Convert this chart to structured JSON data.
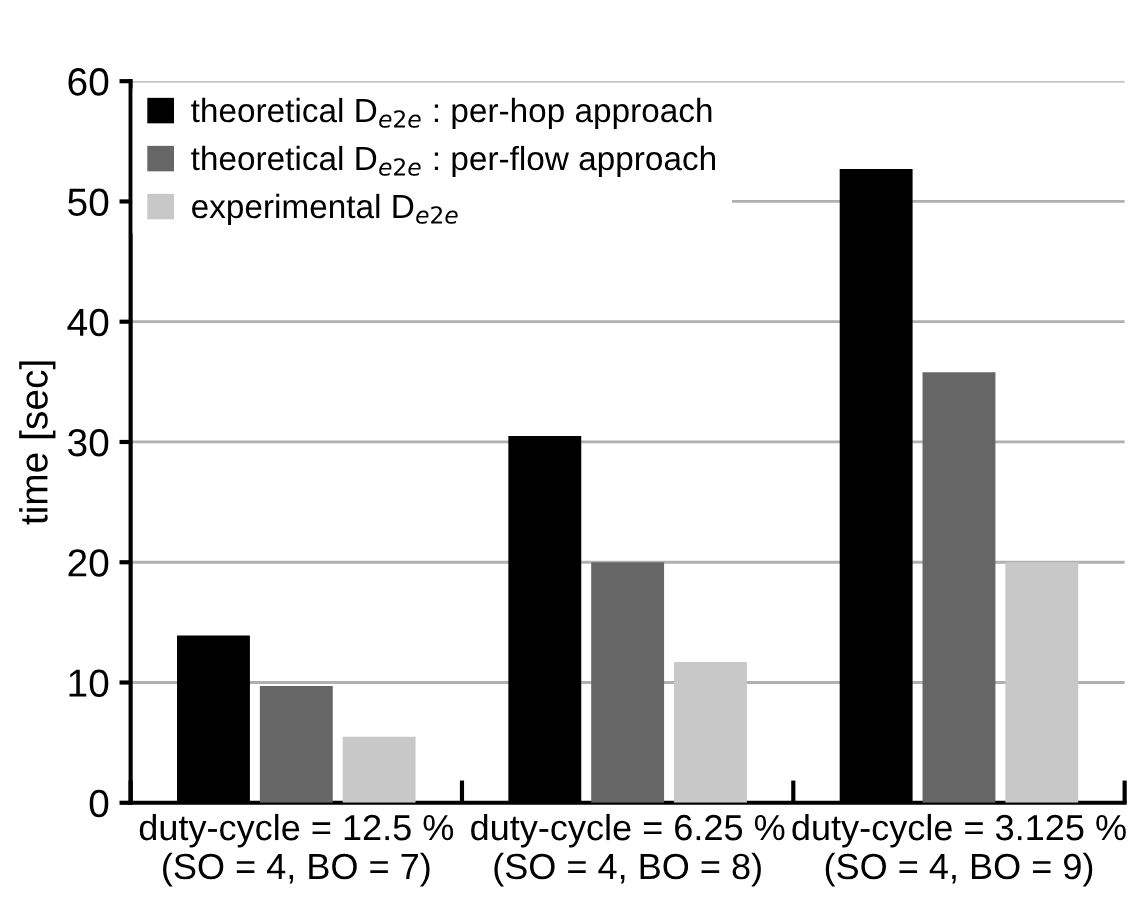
{
  "chart_data": {
    "type": "bar",
    "ylabel": "time [sec]",
    "categories": [
      "duty-cycle = 12.5 %\n(SO = 4, BO = 7)",
      "duty-cycle = 6.25 %\n(SO = 4, BO = 8)",
      "duty-cycle = 3.125 %\n(SO = 4, BO = 9)"
    ],
    "series": [
      {
        "name": "theoretical D$_{e2e}$ : per-hop approach",
        "color": "#000000",
        "values": [
          13.9,
          30.5,
          52.7
        ]
      },
      {
        "name": "theoretical D$_{e2e}$ : per-flow approach",
        "color": "#666666",
        "values": [
          9.7,
          20.0,
          35.8
        ]
      },
      {
        "name": "experimental D$_{e2e}$",
        "color": "#c8c8c8",
        "values": [
          5.5,
          11.7,
          20.0
        ]
      }
    ],
    "ylim": [
      0,
      60
    ],
    "yticks": [
      0,
      10,
      20,
      30,
      40,
      50,
      60
    ],
    "grid": "y",
    "legend": "top left"
  }
}
